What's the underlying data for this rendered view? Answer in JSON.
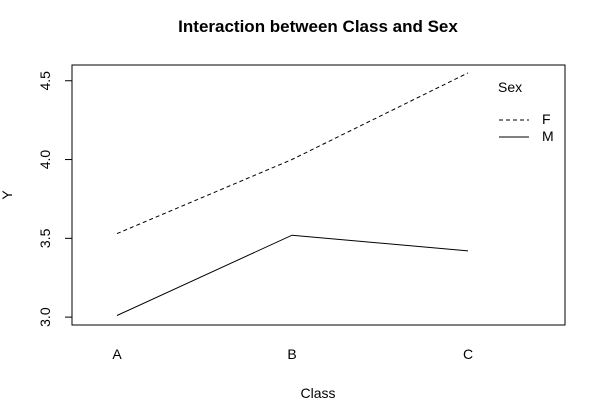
{
  "chart_data": {
    "type": "line",
    "title": "Interaction between Class and Sex",
    "xlabel": "Class",
    "ylabel": "Y",
    "categories": [
      "A",
      "B",
      "C"
    ],
    "ylim": [
      2.95,
      4.6
    ],
    "yticks": [
      "3.0",
      "3.5",
      "4.0",
      "4.5"
    ],
    "grid": false,
    "legend": {
      "title": "Sex",
      "placement": "top-right",
      "entries": [
        "F",
        "M"
      ]
    },
    "series": [
      {
        "name": "F",
        "linestyle": "dashed",
        "values": [
          3.53,
          4.0,
          4.55
        ]
      },
      {
        "name": "M",
        "linestyle": "solid",
        "values": [
          3.01,
          3.52,
          3.42
        ]
      }
    ],
    "colors": {
      "line": "#000000",
      "background": "#ffffff"
    }
  }
}
